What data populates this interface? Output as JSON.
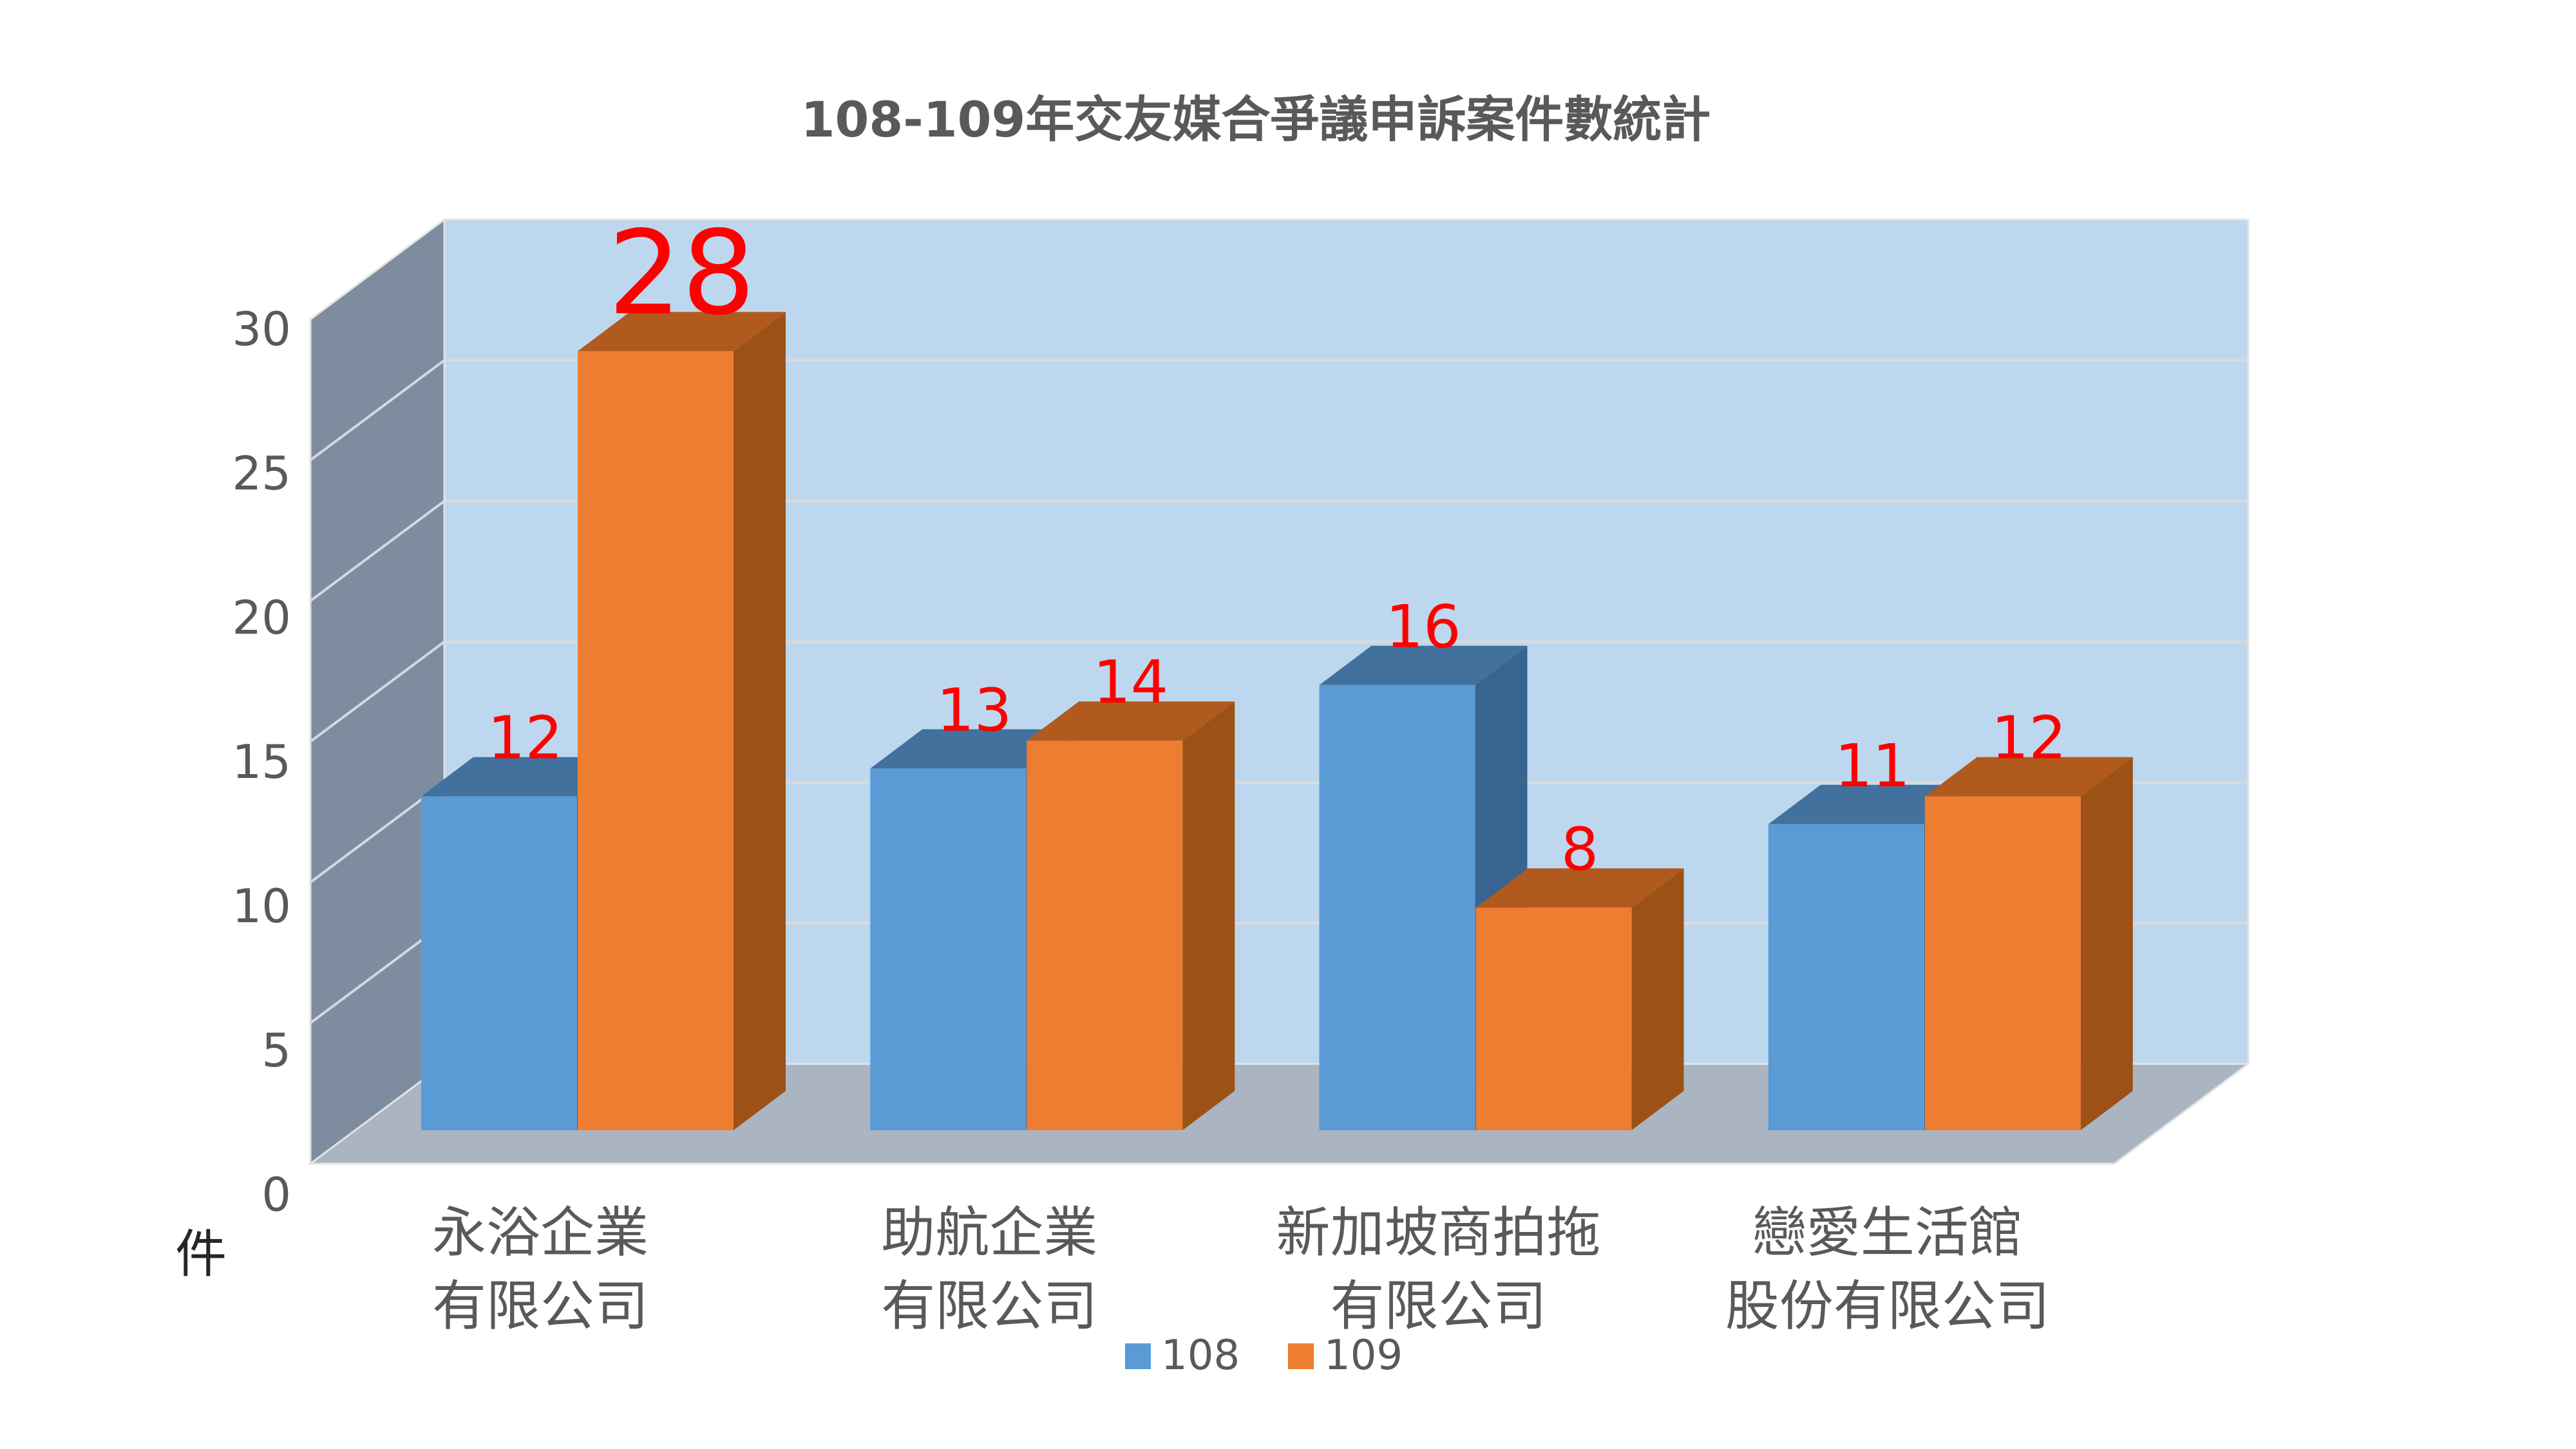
{
  "chart_data": {
    "type": "bar",
    "variant": "3d-clustered-column",
    "title": "108-109年交友媒合爭議申訴案件數統計",
    "ylabel": "件",
    "xlabel": "",
    "categories": [
      "永浴企業有限公司",
      "助航企業有限公司",
      "新加坡商拍拖有限公司",
      "戀愛生活館股份有限公司"
    ],
    "categories_lines": [
      [
        "永浴企業",
        "有限公司"
      ],
      [
        "助航企業",
        "有限公司"
      ],
      [
        "新加坡商拍拖",
        "有限公司"
      ],
      [
        "戀愛生活館",
        "股份有限公司"
      ]
    ],
    "series": [
      {
        "name": "108",
        "values": [
          12,
          13,
          16,
          11
        ],
        "color": "#5B9BD5",
        "color_top": "#41719C",
        "color_side": "#38648F"
      },
      {
        "name": "109",
        "values": [
          28,
          14,
          8,
          12
        ],
        "color": "#ED7D31",
        "color_top": "#B05A1E",
        "color_side": "#9C5217"
      }
    ],
    "y_ticks": [
      0,
      5,
      10,
      15,
      20,
      25,
      30
    ],
    "ylim": [
      0,
      30
    ],
    "grid": true,
    "legend_position": "bottom",
    "data_labels": true,
    "data_label_color": "#FF0000",
    "emphasized_label": {
      "series_index": 1,
      "category_index": 0
    },
    "colors": {
      "back_wall": "#BDD7EE",
      "side_wall": "#7D8C9E",
      "floor": "#ABB5C1",
      "gridline": "#DBDBDB",
      "wall_gridline": "#D4D9DE",
      "edge": "#E3E3E3",
      "text": "#595959",
      "unit_label": "#262626"
    }
  }
}
